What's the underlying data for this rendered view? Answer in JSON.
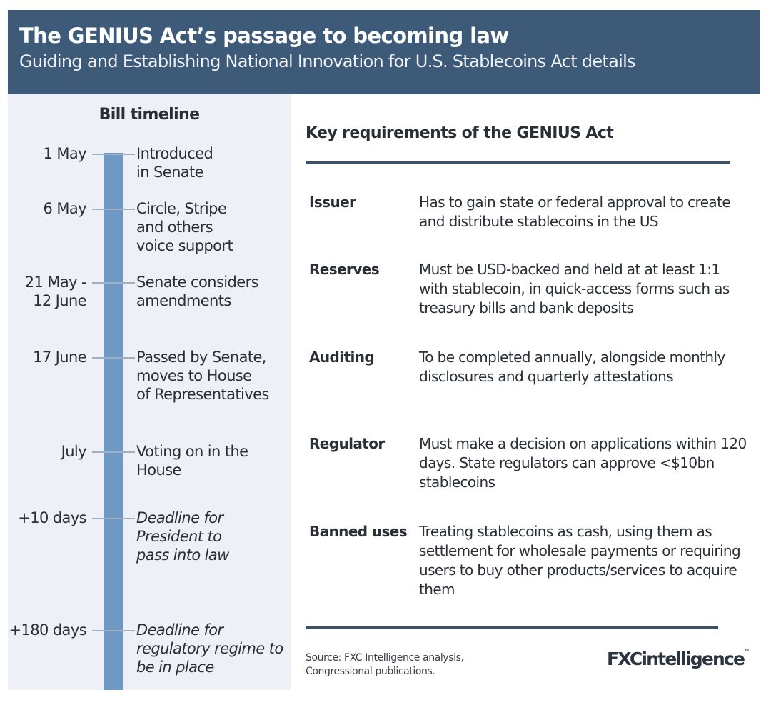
{
  "header": {
    "title": "The GENIUS Act’s passage to becoming law",
    "subtitle": "Guiding and Establishing National Innovation for U.S. Stablecoins Act details"
  },
  "timeline": {
    "title": "Bill timeline",
    "events": [
      {
        "date": "1 May",
        "text": "Introduced\nin Senate",
        "italic": false
      },
      {
        "date": "6 May",
        "text": "Circle, Stripe\nand others\nvoice support",
        "italic": false
      },
      {
        "date": "21 May -\n12 June",
        "text": "Senate considers\namendments",
        "italic": false
      },
      {
        "date": "17 June",
        "text": "Passed by Senate,\nmoves to House\nof Representatives",
        "italic": false
      },
      {
        "date": "July",
        "text": "Voting on in the\nHouse",
        "italic": false
      },
      {
        "date": "+10 days",
        "text": "Deadline for\nPresident to\npass into law",
        "italic": true
      },
      {
        "date": "+180 days",
        "text": "Deadline for\nregulatory regime to\nbe in place",
        "italic": true
      }
    ]
  },
  "requirements": {
    "title": "Key requirements of the GENIUS Act",
    "rows": [
      {
        "label": "Issuer",
        "text": "Has to gain state or federal approval to create and distribute stablecoins in the US"
      },
      {
        "label": "Reserves",
        "text": "Must be USD-backed and held at at least 1:1 with stablecoin, in quick-access forms such as treasury bills and bank deposits"
      },
      {
        "label": "Auditing",
        "text": "To be completed annually, alongside monthly disclosures and quarterly attestations"
      },
      {
        "label": "Regulator",
        "text": "Must make a decision on applications within 120 days. State regulators can approve <$10bn stablecoins"
      },
      {
        "label": "Banned uses",
        "text": "Treating stablecoins as cash, using them as settlement for wholesale payments or requiring users to buy other products/services to acquire them"
      }
    ]
  },
  "footer": {
    "source": "Source: FXC Intelligence analysis, Congressional publications.",
    "logo": "FXCintelligence"
  },
  "colors": {
    "header": "#3d5a78",
    "timeline_bar": "#6f98c3",
    "panel": "#edf1f7"
  }
}
